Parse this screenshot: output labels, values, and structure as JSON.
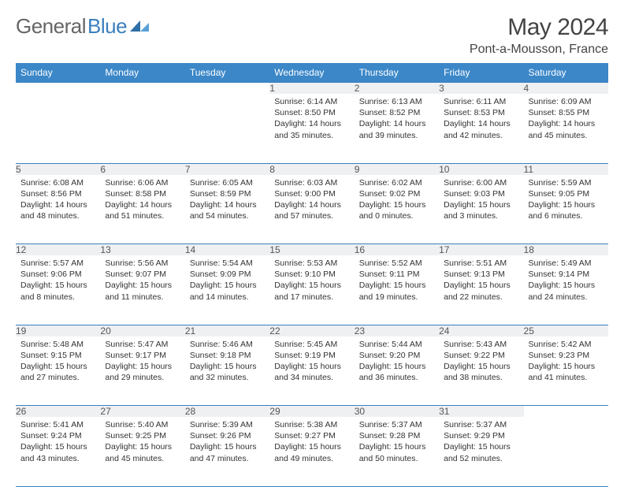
{
  "logo": {
    "part1": "General",
    "part2": "Blue"
  },
  "title": "May 2024",
  "location": "Pont-a-Mousson, France",
  "style": {
    "header_bg": "#3b87c8",
    "header_fg": "#ffffff",
    "border_color": "#3b7fbf",
    "daynum_bg": "#eef0f1",
    "body_fg": "#333333",
    "title_fg": "#444444"
  },
  "day_headers": [
    "Sunday",
    "Monday",
    "Tuesday",
    "Wednesday",
    "Thursday",
    "Friday",
    "Saturday"
  ],
  "weeks": [
    [
      null,
      null,
      null,
      {
        "n": "1",
        "sr": "6:14 AM",
        "ss": "8:50 PM",
        "dl": "14 hours and 35 minutes."
      },
      {
        "n": "2",
        "sr": "6:13 AM",
        "ss": "8:52 PM",
        "dl": "14 hours and 39 minutes."
      },
      {
        "n": "3",
        "sr": "6:11 AM",
        "ss": "8:53 PM",
        "dl": "14 hours and 42 minutes."
      },
      {
        "n": "4",
        "sr": "6:09 AM",
        "ss": "8:55 PM",
        "dl": "14 hours and 45 minutes."
      }
    ],
    [
      {
        "n": "5",
        "sr": "6:08 AM",
        "ss": "8:56 PM",
        "dl": "14 hours and 48 minutes."
      },
      {
        "n": "6",
        "sr": "6:06 AM",
        "ss": "8:58 PM",
        "dl": "14 hours and 51 minutes."
      },
      {
        "n": "7",
        "sr": "6:05 AM",
        "ss": "8:59 PM",
        "dl": "14 hours and 54 minutes."
      },
      {
        "n": "8",
        "sr": "6:03 AM",
        "ss": "9:00 PM",
        "dl": "14 hours and 57 minutes."
      },
      {
        "n": "9",
        "sr": "6:02 AM",
        "ss": "9:02 PM",
        "dl": "15 hours and 0 minutes."
      },
      {
        "n": "10",
        "sr": "6:00 AM",
        "ss": "9:03 PM",
        "dl": "15 hours and 3 minutes."
      },
      {
        "n": "11",
        "sr": "5:59 AM",
        "ss": "9:05 PM",
        "dl": "15 hours and 6 minutes."
      }
    ],
    [
      {
        "n": "12",
        "sr": "5:57 AM",
        "ss": "9:06 PM",
        "dl": "15 hours and 8 minutes."
      },
      {
        "n": "13",
        "sr": "5:56 AM",
        "ss": "9:07 PM",
        "dl": "15 hours and 11 minutes."
      },
      {
        "n": "14",
        "sr": "5:54 AM",
        "ss": "9:09 PM",
        "dl": "15 hours and 14 minutes."
      },
      {
        "n": "15",
        "sr": "5:53 AM",
        "ss": "9:10 PM",
        "dl": "15 hours and 17 minutes."
      },
      {
        "n": "16",
        "sr": "5:52 AM",
        "ss": "9:11 PM",
        "dl": "15 hours and 19 minutes."
      },
      {
        "n": "17",
        "sr": "5:51 AM",
        "ss": "9:13 PM",
        "dl": "15 hours and 22 minutes."
      },
      {
        "n": "18",
        "sr": "5:49 AM",
        "ss": "9:14 PM",
        "dl": "15 hours and 24 minutes."
      }
    ],
    [
      {
        "n": "19",
        "sr": "5:48 AM",
        "ss": "9:15 PM",
        "dl": "15 hours and 27 minutes."
      },
      {
        "n": "20",
        "sr": "5:47 AM",
        "ss": "9:17 PM",
        "dl": "15 hours and 29 minutes."
      },
      {
        "n": "21",
        "sr": "5:46 AM",
        "ss": "9:18 PM",
        "dl": "15 hours and 32 minutes."
      },
      {
        "n": "22",
        "sr": "5:45 AM",
        "ss": "9:19 PM",
        "dl": "15 hours and 34 minutes."
      },
      {
        "n": "23",
        "sr": "5:44 AM",
        "ss": "9:20 PM",
        "dl": "15 hours and 36 minutes."
      },
      {
        "n": "24",
        "sr": "5:43 AM",
        "ss": "9:22 PM",
        "dl": "15 hours and 38 minutes."
      },
      {
        "n": "25",
        "sr": "5:42 AM",
        "ss": "9:23 PM",
        "dl": "15 hours and 41 minutes."
      }
    ],
    [
      {
        "n": "26",
        "sr": "5:41 AM",
        "ss": "9:24 PM",
        "dl": "15 hours and 43 minutes."
      },
      {
        "n": "27",
        "sr": "5:40 AM",
        "ss": "9:25 PM",
        "dl": "15 hours and 45 minutes."
      },
      {
        "n": "28",
        "sr": "5:39 AM",
        "ss": "9:26 PM",
        "dl": "15 hours and 47 minutes."
      },
      {
        "n": "29",
        "sr": "5:38 AM",
        "ss": "9:27 PM",
        "dl": "15 hours and 49 minutes."
      },
      {
        "n": "30",
        "sr": "5:37 AM",
        "ss": "9:28 PM",
        "dl": "15 hours and 50 minutes."
      },
      {
        "n": "31",
        "sr": "5:37 AM",
        "ss": "9:29 PM",
        "dl": "15 hours and 52 minutes."
      },
      null
    ]
  ],
  "labels": {
    "sunrise": "Sunrise: ",
    "sunset": "Sunset: ",
    "daylight": "Daylight: "
  }
}
